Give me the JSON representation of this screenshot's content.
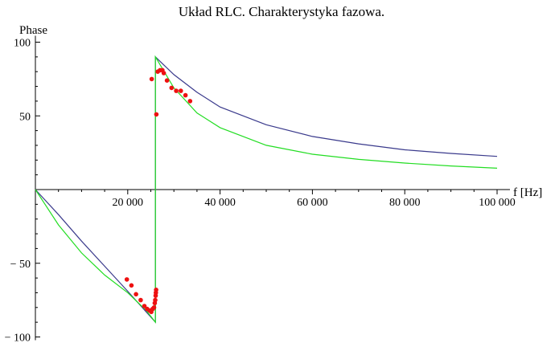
{
  "chart_data": {
    "type": "line",
    "title": "Układ RLC. Charakterystyka fazowa.",
    "xlabel": "f [Hz]",
    "ylabel": "Phase",
    "xlim": [
      0,
      100000
    ],
    "ylim": [
      -100,
      100
    ],
    "x_ticks": [
      {
        "value": 20000,
        "label": "20 000"
      },
      {
        "value": 40000,
        "label": "40 000"
      },
      {
        "value": 60000,
        "label": "60 000"
      },
      {
        "value": 80000,
        "label": "80 000"
      },
      {
        "value": 100000,
        "label": "100 000"
      }
    ],
    "y_ticks": [
      {
        "value": 100,
        "label": "100"
      },
      {
        "value": 50,
        "label": "50"
      },
      {
        "value": -50,
        "label": "− 50"
      },
      {
        "value": -100,
        "label": "− 100"
      }
    ],
    "grid": false,
    "series": [
      {
        "kind": "line",
        "color": "#3a3a8c",
        "x": [
          0,
          5000,
          10000,
          15000,
          20000,
          24000,
          26000,
          26000,
          30000,
          35000,
          40000,
          50000,
          60000,
          70000,
          80000,
          90000,
          100000
        ],
        "y": [
          0,
          -17,
          -35,
          -52,
          -69,
          -83,
          -90,
          90,
          78,
          66,
          56,
          44,
          36,
          31,
          27,
          24.5,
          22.5
        ]
      },
      {
        "kind": "line",
        "color": "#22dd22",
        "x": [
          0,
          5000,
          10000,
          15000,
          20000,
          24000,
          26000,
          26000,
          30000,
          35000,
          40000,
          50000,
          60000,
          70000,
          80000,
          90000,
          100000
        ],
        "y": [
          0,
          -24,
          -43,
          -58,
          -70,
          -82,
          -90,
          90,
          69,
          52,
          42,
          30,
          24,
          20.5,
          18,
          16,
          14.5
        ]
      },
      {
        "kind": "scatter",
        "color": "#ee1111",
        "x": [
          19800,
          20800,
          21800,
          22800,
          23600,
          24200,
          24700,
          25100,
          25400,
          25700,
          25850,
          25950,
          26050,
          26100,
          26150,
          25200,
          26200,
          26500,
          27000,
          27500,
          27800,
          28500,
          29500,
          30500,
          31500,
          32500,
          33500
        ],
        "y": [
          -61,
          -65,
          -71,
          -75,
          -79,
          -81,
          -82,
          -83,
          -81,
          -80,
          -77,
          -75,
          -72,
          -70,
          -68,
          75,
          51,
          80,
          81,
          81,
          79,
          74,
          69,
          67,
          67,
          64,
          60
        ]
      }
    ]
  }
}
